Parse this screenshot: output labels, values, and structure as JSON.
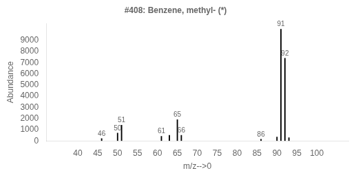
{
  "chart_data": {
    "type": "stem",
    "title": "#408: Benzene, methyl- (*)",
    "x_label": "m/z-->0",
    "y_label": "Abundance",
    "x": [
      46,
      50,
      51,
      61,
      63,
      65,
      66,
      86,
      90,
      91,
      92,
      93
    ],
    "values": [
      200,
      700,
      1400,
      400,
      500,
      1900,
      500,
      150,
      350,
      9999,
      7400,
      280
    ],
    "peak_labels": [
      "46",
      "50",
      "51",
      "61",
      null,
      "65",
      "66",
      "86",
      null,
      "91",
      "92",
      null
    ],
    "color": "#000000",
    "xlim": [
      35,
      105
    ],
    "xticks": [
      40,
      45,
      50,
      55,
      60,
      65,
      70,
      75,
      80,
      85,
      90,
      95,
      100
    ],
    "ylim": [
      0,
      10500
    ],
    "yticks": [
      0,
      1000,
      2000,
      3000,
      4000,
      5000,
      6000,
      7000,
      8000,
      9000
    ],
    "grid": false
  }
}
